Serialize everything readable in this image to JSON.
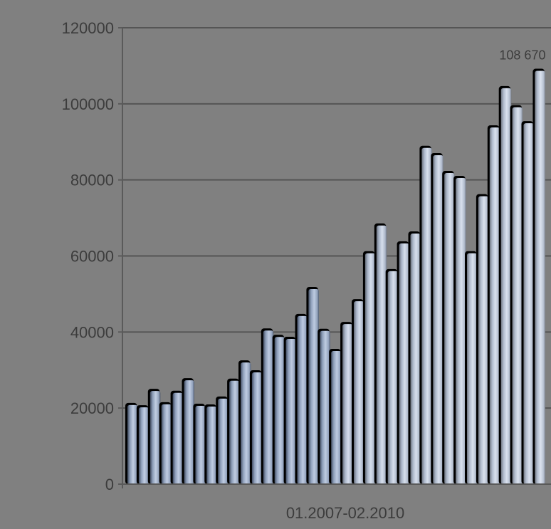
{
  "chart_data": {
    "type": "bar",
    "title": "",
    "xlabel": "01.2007-02.2010",
    "ylabel": "",
    "ylim": [
      0,
      120000
    ],
    "yticks": [
      "0",
      "20000",
      "40000",
      "60000",
      "80000",
      "100000",
      "120000"
    ],
    "grid": true,
    "values": [
      20800,
      20200,
      24500,
      21000,
      24000,
      27300,
      20600,
      20400,
      22500,
      27200,
      32000,
      29400,
      40400,
      38700,
      38200,
      44200,
      51300,
      40300,
      35000,
      42100,
      48100,
      60700,
      68000,
      56000,
      63300,
      65900,
      88400,
      86500,
      81800,
      80500,
      60700,
      75700,
      93800,
      104100,
      99100,
      94900,
      108670
    ],
    "data_labels": [
      {
        "index": 36,
        "text": "108 670"
      }
    ]
  }
}
